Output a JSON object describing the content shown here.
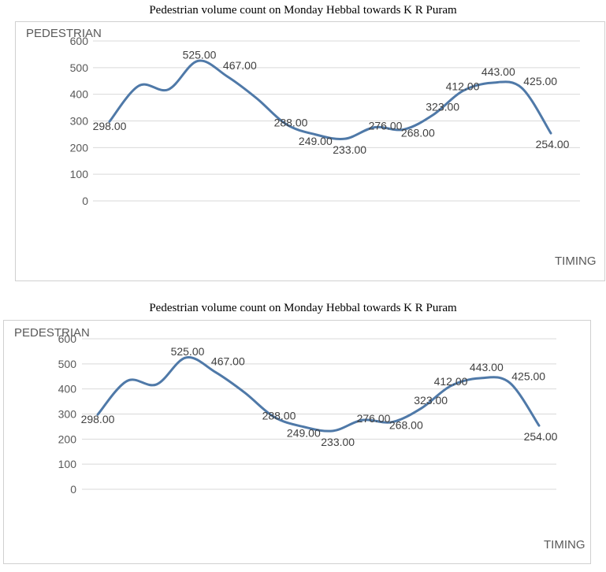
{
  "chart_data": [
    {
      "type": "line",
      "title": "Pedestrian volume count on Monday Hebbal towards K R Puram",
      "ylabel": "PEDESTRIAN",
      "xlabel": "TIMING",
      "ylim": [
        0,
        600
      ],
      "yticks": [
        "0",
        "100",
        "200",
        "300",
        "400",
        "500",
        "600"
      ],
      "grid": true,
      "series": [
        {
          "color": "#4f79a8",
          "values": [
            298,
            432,
            418,
            525,
            467,
            385,
            288,
            249,
            233,
            276,
            268,
            323,
            412,
            443,
            425,
            254
          ],
          "labels": [
            "298.00",
            null,
            null,
            "525.00",
            "467.00",
            null,
            "288.00",
            "249.00",
            "233.00",
            "276.00",
            "268.00",
            "323.00",
            "412.00",
            "443.00",
            "425.00",
            "254.00"
          ]
        }
      ]
    },
    {
      "type": "line",
      "title": "Pedestrian volume count on Monday Hebbal towards K R Puram",
      "ylabel": "PEDESTRIAN",
      "xlabel": "TIMING",
      "ylim": [
        0,
        600
      ],
      "yticks": [
        "0",
        "100",
        "200",
        "300",
        "400",
        "500",
        "600"
      ],
      "grid": true,
      "series": [
        {
          "color": "#4f79a8",
          "values": [
            298,
            432,
            418,
            525,
            467,
            385,
            288,
            249,
            233,
            276,
            268,
            323,
            412,
            443,
            425,
            254
          ],
          "labels": [
            "298.00",
            null,
            null,
            "525.00",
            "467.00",
            null,
            "288.00",
            "249.00",
            "233.00",
            "276.00",
            "268.00",
            "323.00",
            "412.00",
            "443.00",
            "425.00",
            "254.00"
          ]
        }
      ]
    }
  ]
}
